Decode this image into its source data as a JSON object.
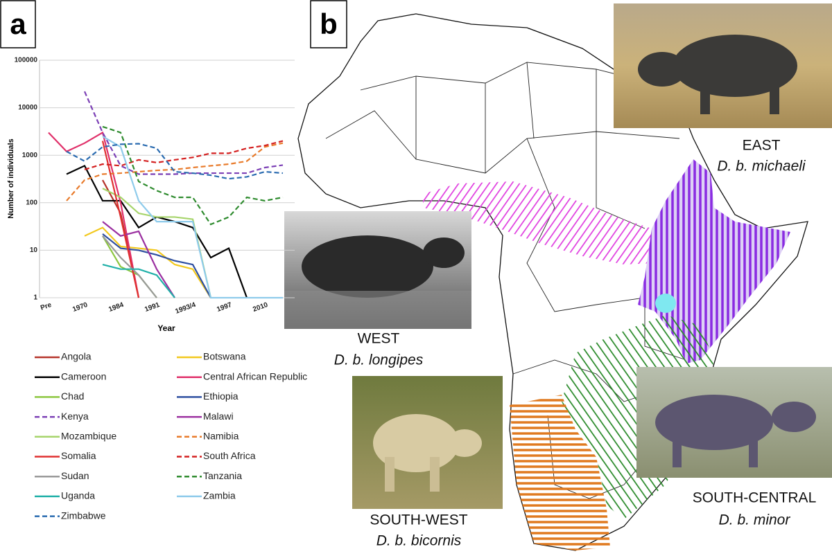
{
  "panel_labels": [
    "a",
    "b"
  ],
  "chart_data": {
    "type": "line",
    "y_label": "Number of individuals",
    "x_label": "Year",
    "log_scale": true,
    "grid": true,
    "categories": [
      "Pre",
      null,
      "1970",
      null,
      "1984",
      null,
      "1991",
      null,
      "1993/4",
      null,
      "1997",
      null,
      "2010",
      null
    ],
    "ylim": [
      1,
      100000
    ],
    "yticks": [
      1,
      10,
      100,
      1000,
      10000,
      100000
    ],
    "series": [
      {
        "name": "Angola",
        "color": "#b5332a",
        "style": "solid",
        "values": [
          null,
          null,
          null,
          300,
          60,
          1,
          null,
          null,
          null,
          null,
          null,
          null,
          null,
          null
        ]
      },
      {
        "name": "Botswana",
        "color": "#f2c81c",
        "style": "solid",
        "values": [
          null,
          null,
          20,
          30,
          12,
          11,
          10,
          5,
          4,
          1,
          null,
          null,
          null,
          null
        ]
      },
      {
        "name": "Cameroon",
        "color": "#000000",
        "style": "solid",
        "values": [
          null,
          400,
          600,
          110,
          110,
          30,
          50,
          40,
          30,
          7,
          11,
          1,
          null,
          null
        ]
      },
      {
        "name": "Central African Republic",
        "color": "#e0306a",
        "style": "solid",
        "values": [
          3000,
          1200,
          1800,
          3000,
          100,
          1,
          null,
          null,
          null,
          null,
          null,
          null,
          null,
          null
        ]
      },
      {
        "name": "Chad",
        "color": "#8cc63f",
        "style": "solid",
        "values": [
          null,
          null,
          null,
          20,
          4.5,
          3,
          1,
          null,
          null,
          null,
          null,
          null,
          null,
          null
        ]
      },
      {
        "name": "Ethiopia",
        "color": "#2e4fa0",
        "style": "solid",
        "values": [
          null,
          null,
          null,
          22,
          11,
          10,
          8,
          6,
          5,
          1,
          null,
          null,
          null,
          null
        ]
      },
      {
        "name": "Kenya",
        "color": "#7b3fb5",
        "style": "dashed",
        "values": [
          null,
          null,
          22000,
          3000,
          600,
          400,
          400,
          400,
          420,
          420,
          420,
          420,
          550,
          620
        ]
      },
      {
        "name": "Malawi",
        "color": "#9b30a0",
        "style": "solid",
        "values": [
          null,
          null,
          null,
          40,
          20,
          25,
          4,
          1,
          null,
          null,
          null,
          null,
          null,
          null
        ]
      },
      {
        "name": "Mozambique",
        "color": "#a6d46a",
        "style": "solid",
        "values": [
          null,
          null,
          null,
          200,
          130,
          60,
          50,
          50,
          45,
          1,
          null,
          null,
          null,
          null
        ]
      },
      {
        "name": "Namibia",
        "color": "#e87a2a",
        "style": "dashed",
        "values": [
          null,
          110,
          300,
          400,
          420,
          450,
          480,
          500,
          550,
          600,
          650,
          750,
          1500,
          1800
        ]
      },
      {
        "name": "Somalia",
        "color": "#e03030",
        "style": "solid",
        "values": [
          null,
          null,
          null,
          2000,
          50,
          1,
          null,
          null,
          null,
          null,
          null,
          null,
          null,
          null
        ]
      },
      {
        "name": "South Africa",
        "color": "#d42020",
        "style": "dashed",
        "values": [
          null,
          null,
          500,
          650,
          600,
          800,
          700,
          800,
          900,
          1100,
          1100,
          1400,
          1600,
          2000
        ]
      },
      {
        "name": "Sudan",
        "color": "#999999",
        "style": "solid",
        "values": [
          null,
          null,
          null,
          20,
          7,
          3,
          1,
          null,
          null,
          null,
          null,
          null,
          null,
          null
        ]
      },
      {
        "name": "Tanzania",
        "color": "#2e8b2e",
        "style": "dashed",
        "values": [
          null,
          null,
          null,
          4000,
          3000,
          280,
          180,
          130,
          130,
          35,
          50,
          130,
          110,
          130
        ]
      },
      {
        "name": "Uganda",
        "color": "#20b0a8",
        "style": "solid",
        "values": [
          null,
          null,
          null,
          5,
          4,
          4,
          3,
          1,
          null,
          null,
          null,
          null,
          null,
          null
        ]
      },
      {
        "name": "Zambia",
        "color": "#8ecbeb",
        "style": "solid",
        "values": [
          null,
          null,
          null,
          2500,
          1500,
          110,
          40,
          40,
          40,
          1,
          1,
          1,
          1,
          1
        ]
      },
      {
        "name": "Zimbabwe",
        "color": "#2a6bb0",
        "style": "dashed",
        "values": [
          null,
          1200,
          750,
          1500,
          1700,
          1750,
          1400,
          450,
          420,
          380,
          320,
          350,
          450,
          420
        ]
      }
    ]
  },
  "map": {
    "regions": [
      {
        "name": "EAST",
        "subspecies": "D. b. michaeli"
      },
      {
        "name": "WEST",
        "subspecies": "D. b. longipes"
      },
      {
        "name": "SOUTH-WEST",
        "subspecies": "D. b. bicornis"
      },
      {
        "name": "SOUTH-CENTRAL",
        "subspecies": "D. b. minor"
      }
    ]
  }
}
